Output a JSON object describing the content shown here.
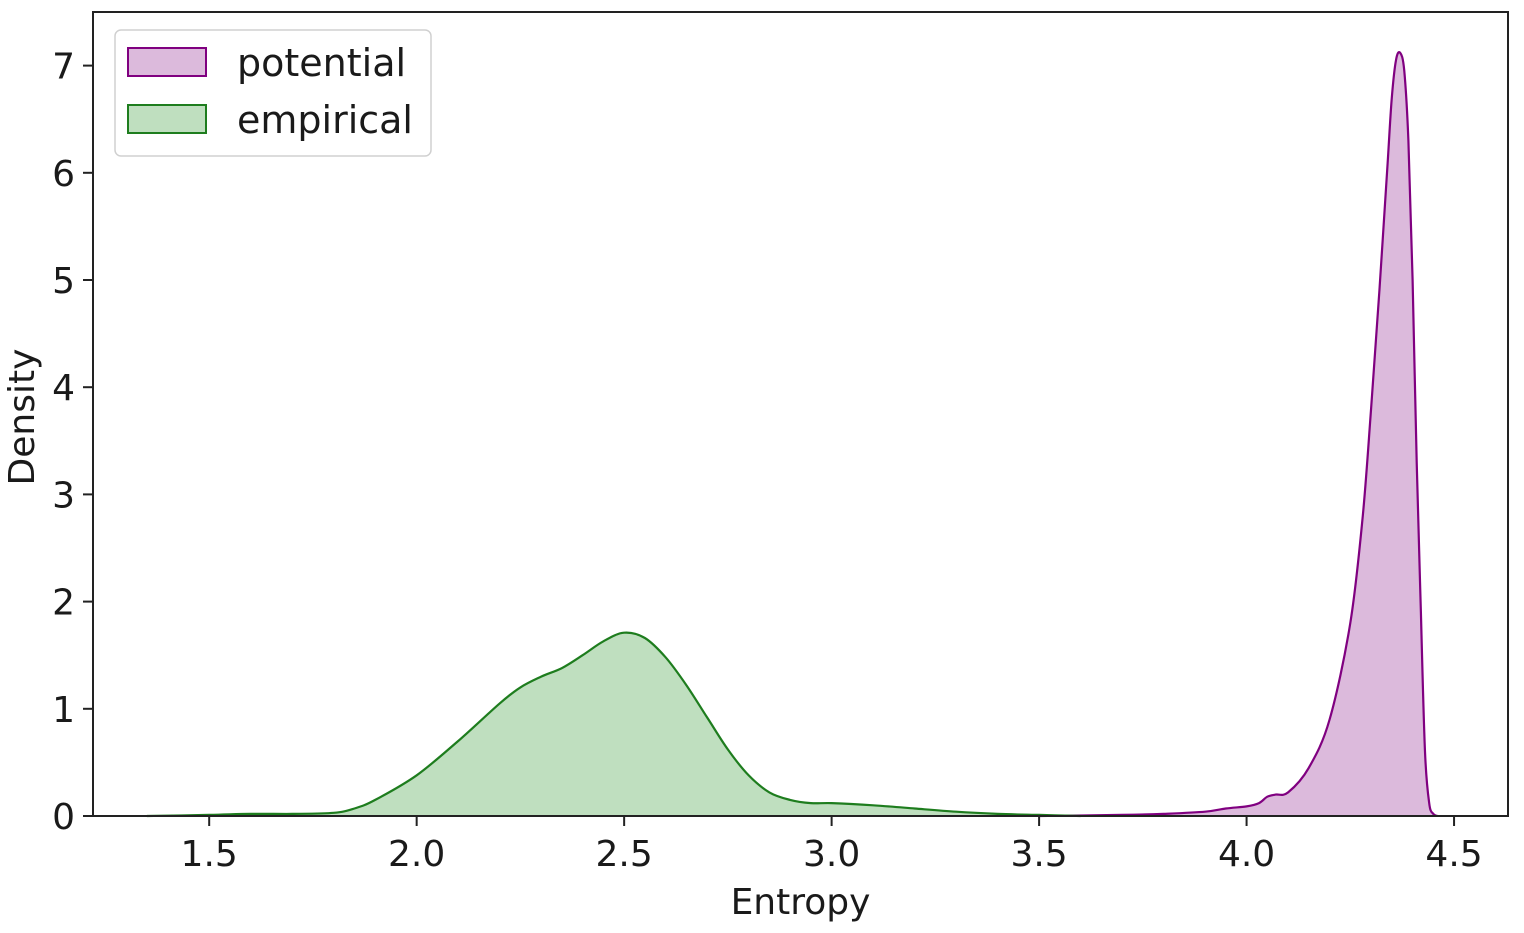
{
  "chart_data": {
    "type": "area",
    "title": "",
    "xlabel": "Entropy",
    "ylabel": "Density",
    "xlim": [
      1.22,
      4.63
    ],
    "ylim": [
      0,
      7.5
    ],
    "xticks": [
      "1.5",
      "2.0",
      "2.5",
      "3.0",
      "3.5",
      "4.0",
      "4.5"
    ],
    "yticks": [
      "0",
      "1",
      "2",
      "3",
      "4",
      "5",
      "6",
      "7"
    ],
    "grid": false,
    "legend_position": "top-left",
    "series": [
      {
        "name": "potential",
        "line_color": "#800080",
        "fill_color": "#dcbadc",
        "x": [
          3.5,
          3.7,
          3.8,
          3.9,
          3.95,
          4.0,
          4.03,
          4.05,
          4.07,
          4.1,
          4.15,
          4.2,
          4.25,
          4.28,
          4.3,
          4.32,
          4.34,
          4.35,
          4.36,
          4.37,
          4.38,
          4.39,
          4.4,
          4.41,
          4.42,
          4.43,
          4.44,
          4.45,
          4.46
        ],
        "y": [
          0.0,
          0.01,
          0.02,
          0.04,
          0.07,
          0.09,
          0.12,
          0.18,
          0.2,
          0.22,
          0.45,
          0.9,
          1.8,
          2.8,
          3.8,
          4.9,
          6.1,
          6.7,
          7.05,
          7.12,
          6.95,
          6.3,
          5.0,
          3.3,
          1.9,
          0.6,
          0.12,
          0.02,
          0.0
        ]
      },
      {
        "name": "empirical",
        "line_color": "#1e7d1e",
        "fill_color": "#bfdfbf",
        "x": [
          1.35,
          1.5,
          1.6,
          1.7,
          1.8,
          1.85,
          1.9,
          2.0,
          2.1,
          2.2,
          2.25,
          2.3,
          2.35,
          2.4,
          2.45,
          2.5,
          2.55,
          2.6,
          2.65,
          2.7,
          2.75,
          2.8,
          2.85,
          2.9,
          2.95,
          3.0,
          3.1,
          3.2,
          3.3,
          3.4,
          3.5,
          3.6
        ],
        "y": [
          0.0,
          0.01,
          0.02,
          0.02,
          0.03,
          0.07,
          0.15,
          0.38,
          0.7,
          1.05,
          1.2,
          1.3,
          1.38,
          1.5,
          1.63,
          1.71,
          1.66,
          1.48,
          1.22,
          0.92,
          0.62,
          0.38,
          0.22,
          0.15,
          0.12,
          0.12,
          0.1,
          0.07,
          0.04,
          0.02,
          0.01,
          0.0
        ]
      }
    ]
  }
}
